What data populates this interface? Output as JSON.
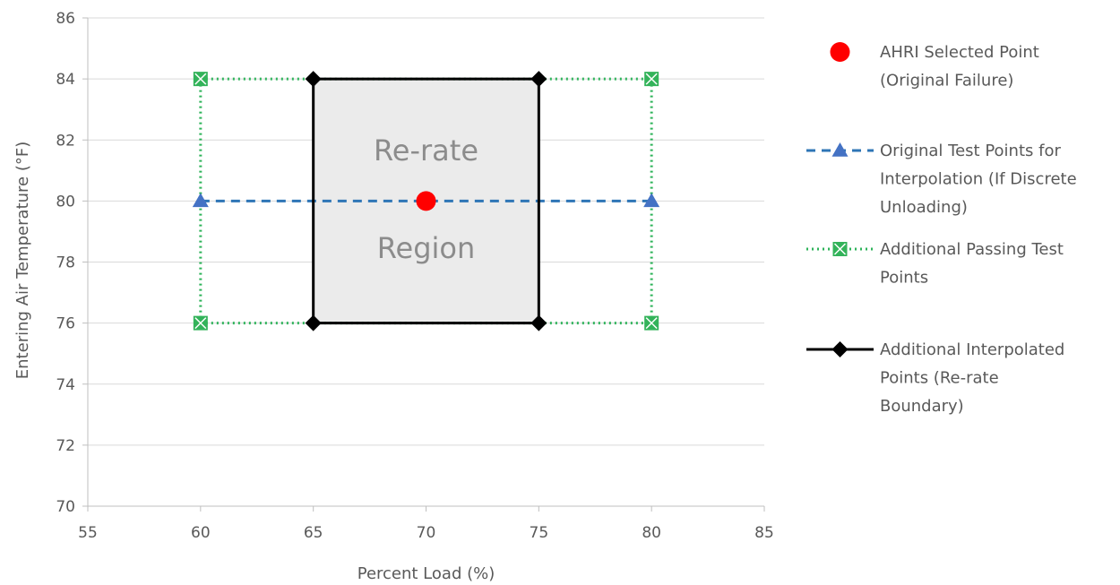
{
  "chart_data": {
    "type": "line",
    "xlabel": "Percent Load (%)",
    "ylabel": "Entering Air Temperature (°F)",
    "xlim": [
      55,
      85
    ],
    "ylim": [
      70,
      86
    ],
    "xticks": [
      55,
      60,
      65,
      70,
      75,
      80,
      85
    ],
    "yticks": [
      70,
      72,
      74,
      76,
      78,
      80,
      82,
      84,
      86
    ],
    "grid": "horizontal",
    "legend_position": "right",
    "annotations": [
      {
        "text": "Re-rate",
        "x": 70,
        "y": 81.6
      },
      {
        "text": "Region",
        "x": 70,
        "y": 78.4
      }
    ],
    "shaded_region": {
      "x": [
        65,
        75
      ],
      "y": [
        76,
        84
      ],
      "color": "#ebebeb"
    },
    "series": [
      {
        "name": "AHRI Selected Point (Original Failure)",
        "legend_lines": [
          "AHRI Selected Point",
          "(Original Failure)"
        ],
        "style": "marker-only",
        "marker": "circle",
        "color": "#ff0000",
        "points": [
          [
            70,
            80
          ]
        ]
      },
      {
        "name": "Original Test Points for Interpolation (If Discrete Unloading)",
        "legend_lines": [
          "Original Test Points for",
          "Interpolation (If Discrete",
          "Unloading)"
        ],
        "style": "dashed",
        "marker": "triangle",
        "color": "#2e75b6",
        "marker_color": "#4472c4",
        "segments": [
          [
            [
              60,
              80
            ],
            [
              80,
              80
            ]
          ]
        ]
      },
      {
        "name": "Additional Passing Test Points",
        "legend_lines": [
          "Additional Passing Test",
          "Points"
        ],
        "style": "dotted",
        "marker": "square-x",
        "color": "#2eb35a",
        "marker_color": "#33b35a",
        "segments": [
          [
            [
              60,
              84
            ],
            [
              80,
              84
            ]
          ],
          [
            [
              60,
              76
            ],
            [
              80,
              76
            ]
          ],
          [
            [
              60,
              76
            ],
            [
              60,
              84
            ]
          ],
          [
            [
              80,
              76
            ],
            [
              80,
              84
            ]
          ]
        ]
      },
      {
        "name": "Additional Interpolated Points (Re-rate Boundary)",
        "legend_lines": [
          "Additional Interpolated",
          "Points (Re-rate",
          "Boundary)"
        ],
        "style": "solid",
        "marker": "diamond",
        "color": "#000000",
        "segments": [
          [
            [
              65,
              76
            ],
            [
              65,
              84
            ],
            [
              75,
              84
            ],
            [
              75,
              76
            ],
            [
              65,
              76
            ]
          ]
        ]
      }
    ]
  }
}
